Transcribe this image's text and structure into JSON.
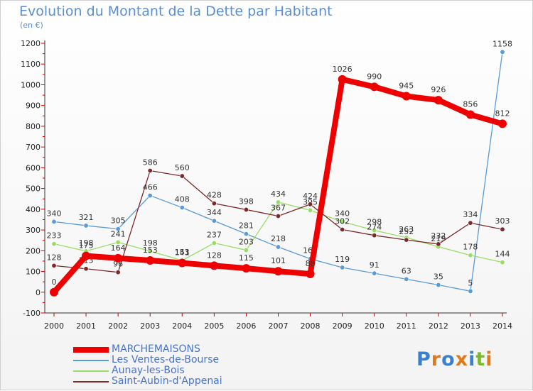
{
  "title": "Evolution du Montant de la Dette par Habitant",
  "unit": "(en €)",
  "logo": "Proxiti",
  "chart_data": {
    "type": "line",
    "title": "Evolution du Montant de la Dette par Habitant",
    "ylabel": "(en €)",
    "ylim": [
      -100,
      1200
    ],
    "grid": false,
    "legend_position": "bottom-left",
    "x": [
      2000,
      2001,
      2002,
      2003,
      2004,
      2005,
      2006,
      2007,
      2008,
      2009,
      2010,
      2011,
      2012,
      2013,
      2014
    ],
    "y_ticks": [
      -100,
      0,
      100,
      200,
      300,
      400,
      500,
      600,
      700,
      800,
      900,
      1000,
      1100,
      1200
    ],
    "series": [
      {
        "name": "Les Ventes-de-Bourse",
        "color": "#5b9bd5",
        "values": [
          340,
          321,
          305,
          466,
          408,
          344,
          281,
          218,
          161,
          119,
          91,
          63,
          35,
          5,
          1158
        ],
        "labels": [
          "340",
          "321",
          "305",
          "466",
          "408",
          "344",
          "281",
          "218",
          "161",
          "119",
          "91",
          "63",
          "35",
          "5",
          "1158"
        ]
      },
      {
        "name": "Aunay-les-Bois",
        "color": "#99dd66",
        "values": [
          233,
          198,
          241,
          198,
          153,
          237,
          203,
          434,
          395,
          340,
          298,
          263,
          219,
          178,
          144
        ],
        "labels": [
          "233",
          "198",
          "241",
          "198",
          "153",
          "237",
          "203",
          "434",
          "395",
          "340",
          "298",
          "263",
          "219",
          "178",
          "144"
        ]
      },
      {
        "name": "Saint-Aubin-d'Appenai",
        "color": "#7a2a2a",
        "values": [
          128,
          113,
          96,
          586,
          560,
          428,
          398,
          367,
          424,
          302,
          274,
          252,
          232,
          334,
          303
        ],
        "labels": [
          "128",
          "113",
          "96",
          "586",
          "560",
          "428",
          "398",
          "367",
          "424",
          "302",
          "274",
          "252",
          "232",
          "334",
          "303"
        ]
      },
      {
        "name": "MARCHEMAISONS",
        "color": "#ee0000",
        "values": [
          0,
          175,
          164,
          153,
          141,
          128,
          115,
          101,
          88,
          1026,
          990,
          945,
          926,
          856,
          812
        ],
        "labels": [
          "0",
          "175",
          "164",
          "153",
          "141",
          "128",
          "115",
          "101",
          "88",
          "1026",
          "990",
          "945",
          "926",
          "856",
          "812"
        ]
      }
    ],
    "legend": [
      {
        "name": "MARCHEMAISONS",
        "color": "#ee0000"
      },
      {
        "name": "Les Ventes-de-Bourse",
        "color": "#5b9bd5"
      },
      {
        "name": "Aunay-les-Bois",
        "color": "#99dd66"
      },
      {
        "name": "Saint-Aubin-d'Appenai",
        "color": "#7a2a2a"
      }
    ]
  }
}
